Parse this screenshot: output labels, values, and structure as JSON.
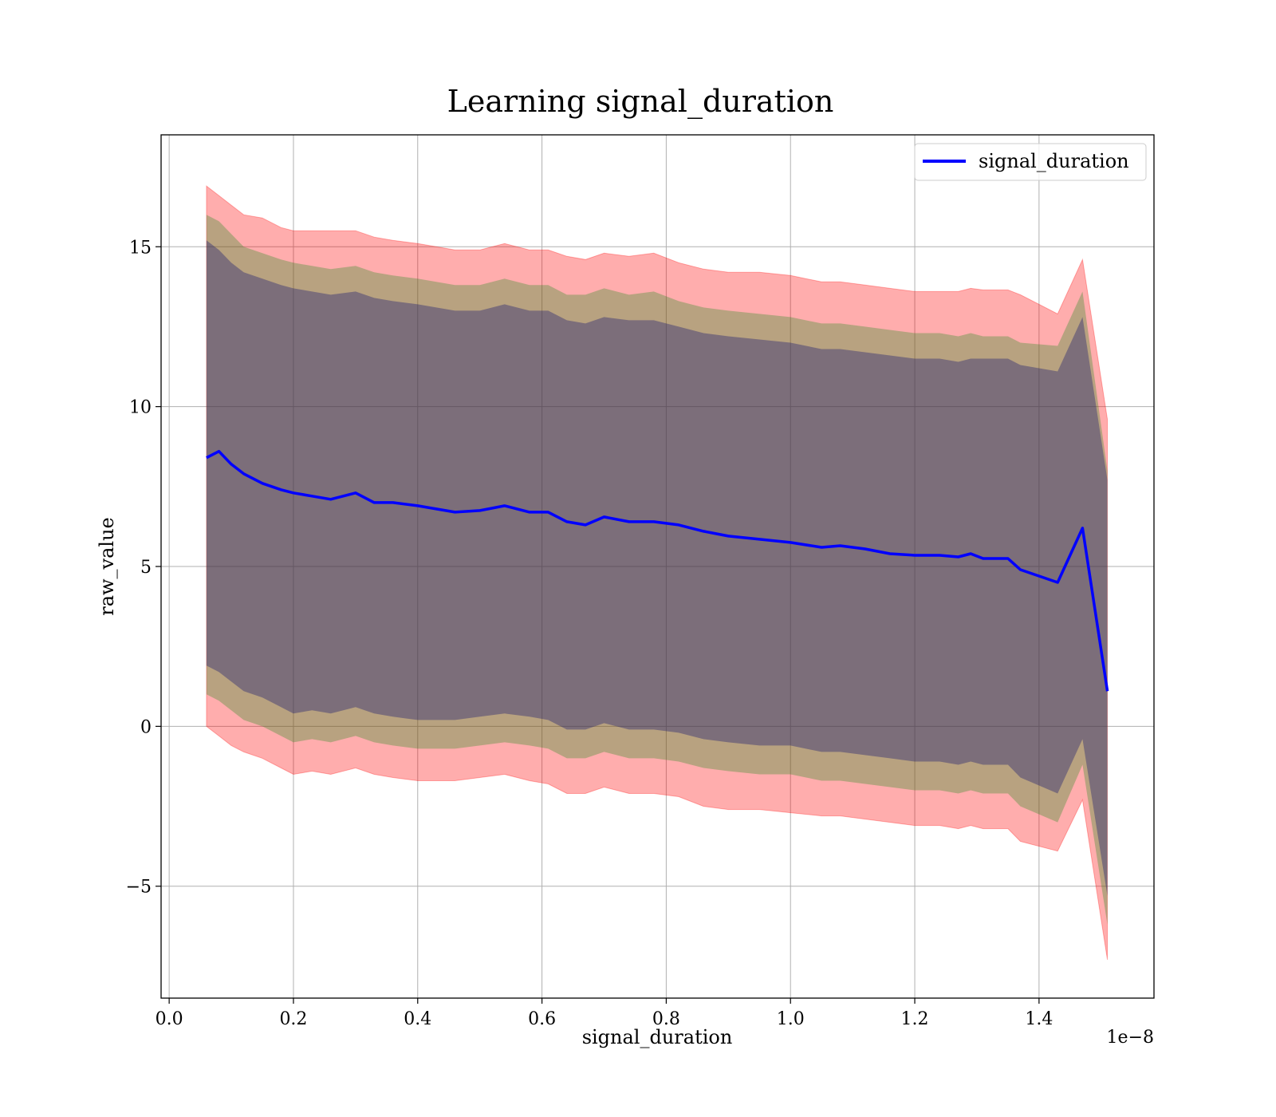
{
  "chart_data": {
    "type": "line",
    "title": "Learning signal_duration",
    "xlabel": "signal_duration",
    "ylabel": "raw_value",
    "x_offset_label": "1e−8",
    "xlim": [
      -0.013,
      1.585
    ],
    "ylim": [
      -8.5,
      18.5
    ],
    "x_ticks": [
      0.0,
      0.2,
      0.4,
      0.6,
      0.8,
      1.0,
      1.2,
      1.4
    ],
    "x_tick_labels": [
      "0.0",
      "0.2",
      "0.4",
      "0.6",
      "0.8",
      "1.0",
      "1.2",
      "1.4"
    ],
    "y_ticks": [
      -5,
      0,
      5,
      10,
      15
    ],
    "y_tick_labels": [
      "−5",
      "0",
      "5",
      "10",
      "15"
    ],
    "grid": true,
    "legend": {
      "position": "top-right",
      "entries": [
        "signal_duration"
      ]
    },
    "colors": {
      "line": "#0000ff",
      "band_outer": "#ff0000",
      "band_middle": "#228b22",
      "band_inner": "#191970",
      "grid": "#b0b0b0"
    },
    "x": [
      0.06,
      0.08,
      0.1,
      0.12,
      0.15,
      0.18,
      0.2,
      0.23,
      0.26,
      0.3,
      0.33,
      0.36,
      0.4,
      0.43,
      0.46,
      0.5,
      0.54,
      0.58,
      0.61,
      0.64,
      0.67,
      0.7,
      0.74,
      0.78,
      0.82,
      0.86,
      0.9,
      0.95,
      1.0,
      1.05,
      1.08,
      1.12,
      1.16,
      1.2,
      1.24,
      1.27,
      1.29,
      1.31,
      1.35,
      1.37,
      1.43,
      1.47,
      1.51
    ],
    "series": [
      {
        "name": "signal_duration",
        "values": [
          8.4,
          8.6,
          8.2,
          7.9,
          7.6,
          7.4,
          7.3,
          7.2,
          7.1,
          7.3,
          7.0,
          7.0,
          6.9,
          6.8,
          6.7,
          6.75,
          6.9,
          6.7,
          6.7,
          6.4,
          6.3,
          6.55,
          6.4,
          6.4,
          6.3,
          6.1,
          5.95,
          5.85,
          5.75,
          5.6,
          5.65,
          5.55,
          5.4,
          5.35,
          5.35,
          5.3,
          5.4,
          5.25,
          5.25,
          4.9,
          4.5,
          6.2,
          1.1
        ],
        "bands": {
          "outer_upper": [
            16.9,
            16.6,
            16.3,
            16.0,
            15.9,
            15.6,
            15.5,
            15.5,
            15.5,
            15.5,
            15.3,
            15.2,
            15.1,
            15.0,
            14.9,
            14.9,
            15.1,
            14.9,
            14.9,
            14.7,
            14.6,
            14.8,
            14.7,
            14.8,
            14.5,
            14.3,
            14.2,
            14.2,
            14.1,
            13.9,
            13.9,
            13.8,
            13.7,
            13.6,
            13.6,
            13.6,
            13.7,
            13.65,
            13.65,
            13.5,
            12.9,
            14.6,
            9.6
          ],
          "outer_lower": [
            0.0,
            -0.3,
            -0.6,
            -0.8,
            -1.0,
            -1.3,
            -1.5,
            -1.4,
            -1.5,
            -1.3,
            -1.5,
            -1.6,
            -1.7,
            -1.7,
            -1.7,
            -1.6,
            -1.5,
            -1.7,
            -1.8,
            -2.1,
            -2.1,
            -1.9,
            -2.1,
            -2.1,
            -2.2,
            -2.5,
            -2.6,
            -2.6,
            -2.7,
            -2.8,
            -2.8,
            -2.9,
            -3.0,
            -3.1,
            -3.1,
            -3.2,
            -3.1,
            -3.2,
            -3.2,
            -3.6,
            -3.9,
            -2.3,
            -7.3
          ],
          "middle_upper": [
            16.0,
            15.8,
            15.4,
            15.0,
            14.8,
            14.6,
            14.5,
            14.4,
            14.3,
            14.4,
            14.2,
            14.1,
            14.0,
            13.9,
            13.8,
            13.8,
            14.0,
            13.8,
            13.8,
            13.5,
            13.5,
            13.7,
            13.5,
            13.6,
            13.3,
            13.1,
            13.0,
            12.9,
            12.8,
            12.6,
            12.6,
            12.5,
            12.4,
            12.3,
            12.3,
            12.2,
            12.3,
            12.2,
            12.2,
            12.0,
            11.9,
            13.6,
            8.0
          ],
          "middle_lower": [
            1.0,
            0.8,
            0.5,
            0.2,
            0.0,
            -0.3,
            -0.5,
            -0.4,
            -0.5,
            -0.3,
            -0.5,
            -0.6,
            -0.7,
            -0.7,
            -0.7,
            -0.6,
            -0.5,
            -0.6,
            -0.7,
            -1.0,
            -1.0,
            -0.8,
            -1.0,
            -1.0,
            -1.1,
            -1.3,
            -1.4,
            -1.5,
            -1.5,
            -1.7,
            -1.7,
            -1.8,
            -1.9,
            -2.0,
            -2.0,
            -2.1,
            -2.0,
            -2.1,
            -2.1,
            -2.5,
            -3.0,
            -1.2,
            -6.2
          ],
          "inner_upper": [
            15.2,
            14.9,
            14.5,
            14.2,
            14.0,
            13.8,
            13.7,
            13.6,
            13.5,
            13.6,
            13.4,
            13.3,
            13.2,
            13.1,
            13.0,
            13.0,
            13.2,
            13.0,
            13.0,
            12.7,
            12.6,
            12.8,
            12.7,
            12.7,
            12.5,
            12.3,
            12.2,
            12.1,
            12.0,
            11.8,
            11.8,
            11.7,
            11.6,
            11.5,
            11.5,
            11.4,
            11.5,
            11.5,
            11.5,
            11.3,
            11.1,
            12.8,
            7.7
          ],
          "inner_lower": [
            1.9,
            1.7,
            1.4,
            1.1,
            0.9,
            0.6,
            0.4,
            0.5,
            0.4,
            0.6,
            0.4,
            0.3,
            0.2,
            0.2,
            0.2,
            0.3,
            0.4,
            0.3,
            0.2,
            -0.1,
            -0.1,
            0.1,
            -0.1,
            -0.1,
            -0.2,
            -0.4,
            -0.5,
            -0.6,
            -0.6,
            -0.8,
            -0.8,
            -0.9,
            -1.0,
            -1.1,
            -1.1,
            -1.2,
            -1.1,
            -1.2,
            -1.2,
            -1.6,
            -2.1,
            -0.4,
            -5.3
          ]
        }
      }
    ]
  }
}
